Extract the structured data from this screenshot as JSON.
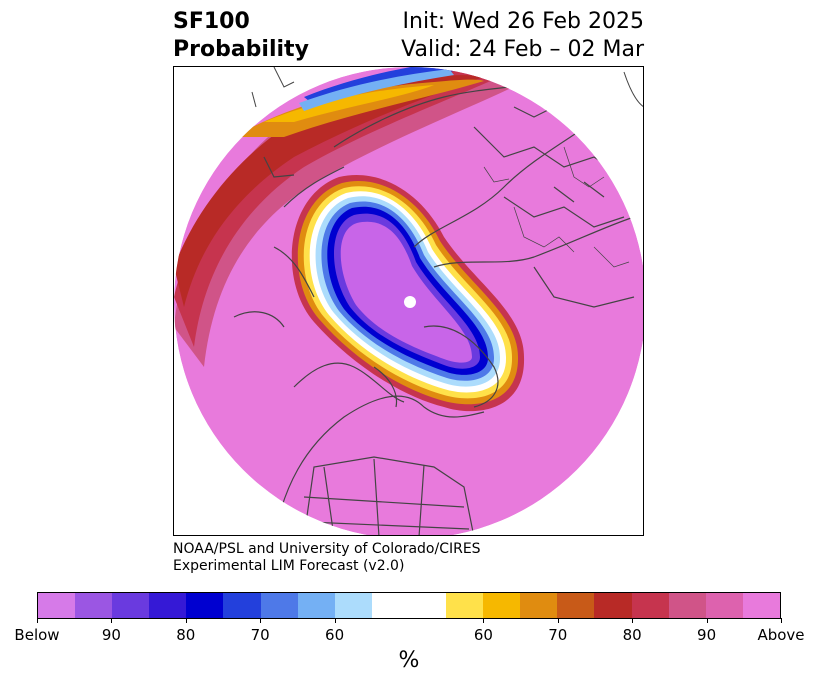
{
  "header": {
    "variable": "SF100",
    "product": "Probability",
    "init": "Init: Wed 26 Feb 2025",
    "valid": "Valid: 24 Feb – 02 Mar"
  },
  "credit": {
    "line1": "NOAA/PSL and University of Colorado/CIRES",
    "line2": "Experimental LIM Forecast (v2.0)"
  },
  "colorbar": {
    "units": "%",
    "colors": [
      "#d67ae8",
      "#9b56e3",
      "#6a3adf",
      "#3519d6",
      "#0000d0",
      "#2340dc",
      "#4e79e8",
      "#74b0f4",
      "#acdcfc",
      "#ffffff",
      "#ffffff",
      "#ffe14a",
      "#f6b800",
      "#e08c10",
      "#c85a18",
      "#b82a26",
      "#c6344e",
      "#d05488",
      "#dd62ae",
      "#e87adc"
    ],
    "tick_labels": [
      "Below",
      "90",
      "80",
      "70",
      "60",
      "60",
      "70",
      "80",
      "90",
      "Above"
    ],
    "tick_index": [
      0,
      2,
      4,
      6,
      8,
      12,
      14,
      16,
      18,
      20
    ]
  },
  "map": {
    "region": "Northern Hemisphere polar stereographic",
    "colors": {
      "above": "#e87adc",
      "below": "#c865e8",
      "deep_below": "#0000d0",
      "mid_below": "#4e79e8",
      "light_below": "#acdcfc",
      "mid_above": "#f6b800",
      "orange": "#e08c10",
      "red": "#b82a26",
      "pink_red": "#c6344e",
      "coast": "#444444"
    }
  }
}
